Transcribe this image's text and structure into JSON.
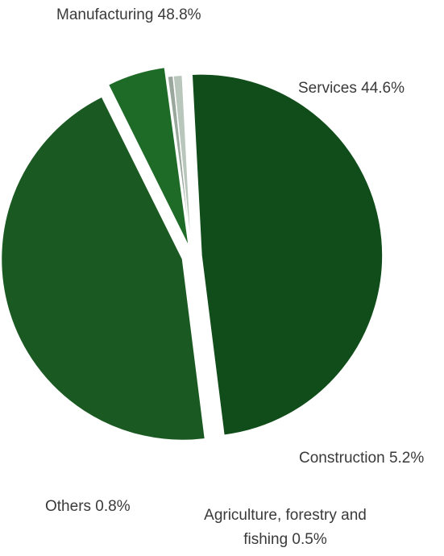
{
  "chart_data": {
    "type": "pie",
    "slices": [
      {
        "label": "Manufacturing 48.8%",
        "name": "Manufacturing",
        "value": 48.8,
        "color": "#114d1a",
        "exploded": true
      },
      {
        "label": "Services 44.6%",
        "name": "Services",
        "value": 44.6,
        "color": "#1a5a22",
        "exploded": true
      },
      {
        "label": "Construction 5.2%",
        "name": "Construction",
        "value": 5.2,
        "color": "#1d6b26",
        "exploded": true
      },
      {
        "label": "Agriculture, forestry and\nfishing 0.5%",
        "name": "Agriculture, forestry and fishing",
        "value": 0.5,
        "color": "#9aa79c",
        "exploded": false
      },
      {
        "label": "Others 0.8%",
        "name": "Others",
        "value": 0.8,
        "color": "#b9c6bb",
        "exploded": false
      }
    ],
    "start_angle_deg": -3,
    "direction": "clockwise",
    "legend": "none"
  }
}
